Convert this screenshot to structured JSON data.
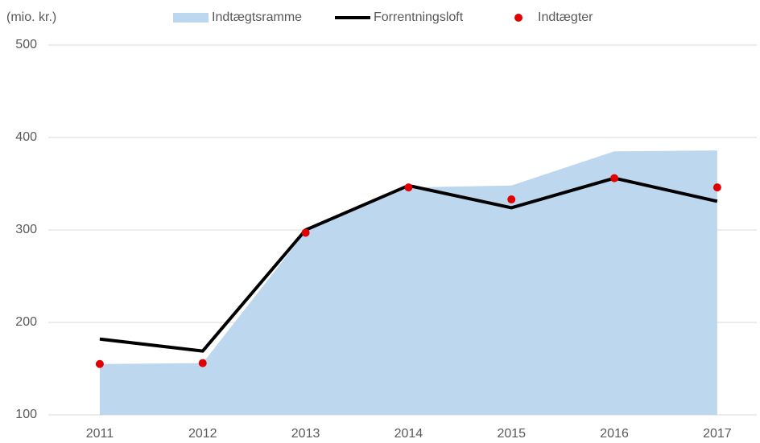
{
  "chart_data": {
    "type": "combo",
    "y_label": "(mio. kr.)",
    "categories": [
      "2011",
      "2012",
      "2013",
      "2014",
      "2015",
      "2016",
      "2017"
    ],
    "series": [
      {
        "name": "Indtægtsramme",
        "type": "area",
        "color": "#bdd7ee",
        "values": [
          155,
          156,
          298,
          346,
          348,
          385,
          386
        ]
      },
      {
        "name": "Forrentningsloft",
        "type": "line",
        "color": "#000000",
        "values": [
          182,
          169,
          300,
          348,
          324,
          356,
          331
        ]
      },
      {
        "name": "Indtægter",
        "type": "scatter",
        "color": "#e00000",
        "values": [
          155,
          156,
          297,
          346,
          333,
          356,
          346
        ]
      }
    ],
    "ylim": [
      100,
      500
    ],
    "yticks": [
      100,
      200,
      300,
      400,
      500
    ],
    "grid": true,
    "legend": "top"
  }
}
